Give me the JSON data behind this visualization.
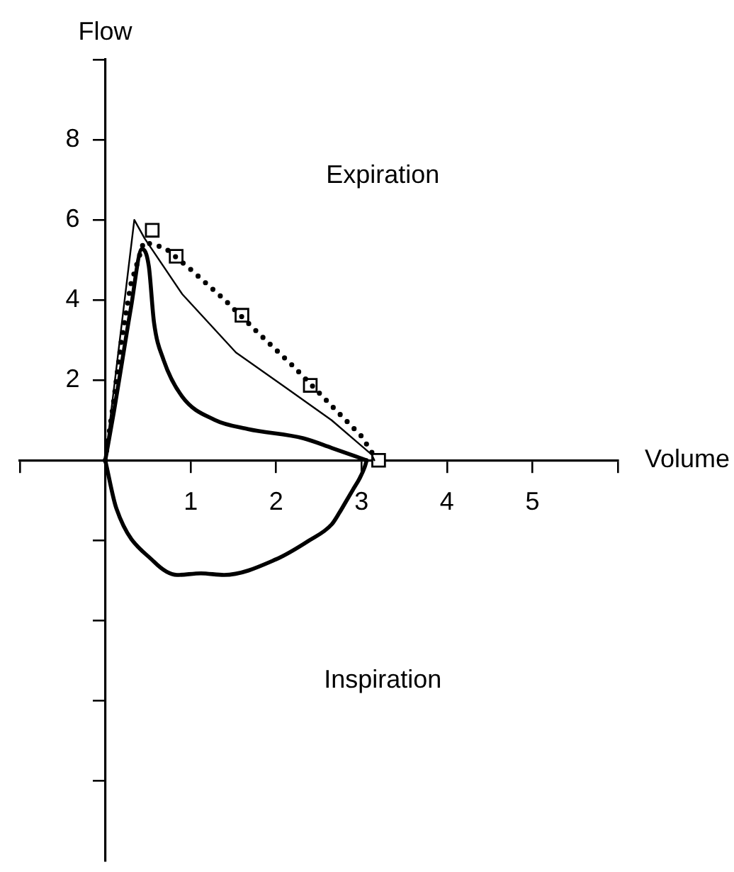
{
  "chart_data": {
    "type": "line",
    "xlabel": "Volume",
    "ylabel": "Flow",
    "annotations": [
      "Expiration",
      "Inspiration"
    ],
    "xlim": [
      -1,
      6
    ],
    "ylim": [
      -10,
      10
    ],
    "xticks": [
      {
        "value": -1,
        "label": null
      },
      1,
      2,
      3,
      4,
      5,
      {
        "value": 6,
        "label": null
      }
    ],
    "yticks": [
      {
        "value": -8,
        "label": null
      },
      {
        "value": -6,
        "label": null
      },
      {
        "value": -4,
        "label": null
      },
      {
        "value": -2,
        "label": null
      },
      2,
      4,
      6,
      8,
      {
        "value": 10,
        "label": null
      }
    ],
    "series": [
      {
        "color": "#000000",
        "line_style": "solid",
        "marker": "none",
        "x": [
          0,
          0.34,
          0.46,
          0.9,
          1.53,
          2.11,
          2.65,
          3.12,
          3.15
        ],
        "values": [
          0,
          6.0,
          5.54,
          4.15,
          2.69,
          1.82,
          1.0,
          0.14,
          0
        ]
      },
      {
        "color": "#000000",
        "line_style": "dotted",
        "marker": "none",
        "x": [
          0,
          0.1,
          0.19,
          0.3,
          0.45,
          0.7,
          0.98,
          1.4,
          1.78,
          2.2,
          2.65,
          3.0,
          3.18
        ],
        "values": [
          0,
          1.5,
          3.0,
          4.4,
          5.45,
          5.3,
          4.8,
          4.0,
          3.2,
          2.35,
          1.36,
          0.6,
          0
        ]
      },
      {
        "color": "#000000",
        "line_style": "solid",
        "marker": "none",
        "x": [
          0,
          0.1,
          0.2,
          0.3,
          0.43,
          0.51,
          0.57,
          0.68,
          0.9,
          1.28,
          1.67,
          2.32,
          2.65,
          3.06
        ],
        "values": [
          0,
          1.2,
          2.5,
          3.8,
          5.27,
          4.84,
          3.45,
          2.52,
          1.59,
          1.01,
          0.78,
          0.55,
          0.31,
          0
        ]
      },
      {
        "color": "#000000",
        "line_style": "solid",
        "marker": "none",
        "x": [
          0,
          0.13,
          0.57,
          0.84,
          1.12,
          1.39,
          2.0,
          2.38,
          2.65,
          2.74,
          2.82,
          2.9,
          2.98,
          3.04,
          3.06
        ],
        "values": [
          0,
          -1.2,
          -2.53,
          -2.86,
          -2.82,
          -2.86,
          -2.47,
          -2.01,
          -1.6,
          -1.31,
          -1.02,
          -0.73,
          -0.44,
          -0.15,
          0
        ]
      },
      {
        "type": "scatter",
        "color": "#000000",
        "marker": "square",
        "x": [
          0.55,
          0.83,
          1.6,
          2.4,
          3.2
        ],
        "values": [
          5.74,
          5.09,
          3.62,
          1.87,
          0
        ]
      }
    ]
  }
}
